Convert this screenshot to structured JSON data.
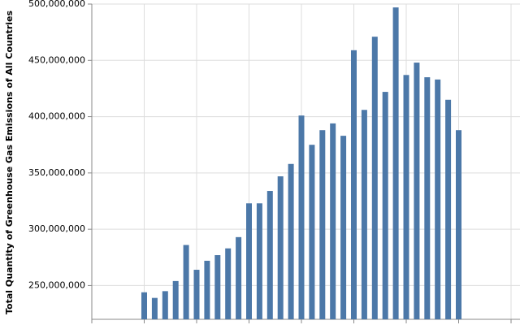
{
  "chart_data": {
    "type": "bar",
    "y_axis_title": "Total Quantity of Greenhouse Gas Emissions of All Countries",
    "categories": [
      null,
      null,
      null,
      null,
      null,
      null,
      null,
      null,
      null,
      null,
      null,
      null,
      null,
      null,
      null,
      null,
      null,
      null,
      null,
      null,
      null,
      null,
      null,
      null,
      null,
      null,
      null,
      null,
      null,
      null,
      null
    ],
    "values": [
      244000000,
      239000000,
      245000000,
      254000000,
      286000000,
      264000000,
      272000000,
      277000000,
      283000000,
      293000000,
      323000000,
      323000000,
      334000000,
      347000000,
      358000000,
      401000000,
      375000000,
      388000000,
      394000000,
      383000000,
      459000000,
      406000000,
      471000000,
      422000000,
      497000000,
      437000000,
      448000000,
      435000000,
      433000000,
      415000000,
      388000000
    ],
    "color": "#4c78a8",
    "ylim": [
      220000000,
      500000000
    ],
    "yticks": [
      {
        "value": 250000000,
        "label": "250,000,000"
      },
      {
        "value": 300000000,
        "label": "300,000,000"
      },
      {
        "value": 350000000,
        "label": "350,000,000"
      },
      {
        "value": 400000000,
        "label": "400,000,000"
      },
      {
        "value": 450000000,
        "label": "450,000,000"
      },
      {
        "value": 500000000,
        "label": "500,000,000"
      }
    ],
    "grid": true
  }
}
